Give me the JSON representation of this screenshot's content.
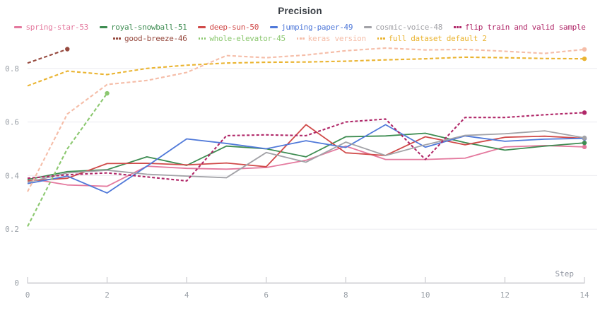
{
  "chart": {
    "title": "Precision",
    "x_axis_label": "Step",
    "x_tick_labels": [
      "0",
      "2",
      "4",
      "6",
      "8",
      "10",
      "12",
      "14"
    ],
    "y_tick_labels": [
      "0",
      "0.2",
      "0.4",
      "0.6",
      "0.8"
    ],
    "colors": {
      "grid": "#ececf0",
      "axis": "#d4d4d8",
      "tick_text": "#9ba1a8",
      "step_label_text": "#9095a0",
      "title_text": "#3a3f45",
      "background": "#ffffff"
    }
  },
  "chart_data": {
    "type": "line",
    "title": "Precision",
    "xlabel": "Step",
    "ylabel": "",
    "xlim": [
      0,
      14
    ],
    "ylim": [
      0,
      1.0
    ],
    "x_ticks": [
      0,
      2,
      4,
      6,
      8,
      10,
      12,
      14
    ],
    "y_ticks": [
      0,
      0.2,
      0.4,
      0.6,
      0.8
    ],
    "grid": "horizontal",
    "legend_position": "top",
    "legend_rows": [
      [
        0,
        1,
        2,
        3,
        4,
        5
      ],
      [
        6,
        7,
        8,
        9
      ]
    ],
    "x": [
      0,
      1,
      2,
      3,
      4,
      5,
      6,
      7,
      8,
      9,
      10,
      11,
      12,
      13,
      14
    ],
    "series": [
      {
        "name": "spring-star-53",
        "color": "#e4799e",
        "style": "solid",
        "values": [
          0.39,
          0.365,
          0.36,
          0.435,
          0.427,
          0.424,
          0.43,
          0.457,
          0.51,
          0.46,
          0.46,
          0.465,
          0.507,
          0.512,
          0.507
        ]
      },
      {
        "name": "royal-snowball-51",
        "color": "#3d8c51",
        "style": "solid",
        "values": [
          0.385,
          0.415,
          0.422,
          0.47,
          0.438,
          0.51,
          0.5,
          0.47,
          0.545,
          0.548,
          0.558,
          0.523,
          0.495,
          0.51,
          0.522
        ]
      },
      {
        "name": "deep-sun-50",
        "color": "#d04a49",
        "style": "solid",
        "values": [
          0.38,
          0.39,
          0.445,
          0.446,
          0.44,
          0.447,
          0.433,
          0.59,
          0.485,
          0.475,
          0.545,
          0.515,
          0.543,
          0.547,
          0.539
        ]
      },
      {
        "name": "jumping-paper-49",
        "color": "#5079d9",
        "style": "solid",
        "values": [
          0.37,
          0.398,
          0.335,
          0.435,
          0.537,
          0.52,
          0.5,
          0.53,
          0.505,
          0.59,
          0.506,
          0.548,
          0.528,
          0.536,
          0.539
        ]
      },
      {
        "name": "cosmic-voice-48",
        "color": "#a2a2a7",
        "style": "solid",
        "values": [
          0.375,
          0.41,
          0.42,
          0.405,
          0.398,
          0.392,
          0.486,
          0.45,
          0.525,
          0.475,
          0.515,
          0.55,
          0.556,
          0.567,
          0.541
        ]
      },
      {
        "name": "flip train and valid sample",
        "color": "#b02768",
        "style": "dashed",
        "values": [
          0.39,
          0.403,
          0.41,
          0.395,
          0.38,
          0.549,
          0.552,
          0.549,
          0.6,
          0.611,
          0.46,
          0.617,
          0.617,
          0.627,
          0.635
        ]
      },
      {
        "name": "good-breeze-46",
        "color": "#96493e",
        "style": "dashed",
        "values": [
          0.82,
          0.872
        ]
      },
      {
        "name": "whole-elevator-45",
        "color": "#8cc870",
        "style": "dashed",
        "values": [
          0.21,
          0.5,
          0.707
        ]
      },
      {
        "name": "keras version",
        "color": "#f5bda8",
        "style": "dashed",
        "values": [
          0.34,
          0.63,
          0.74,
          0.755,
          0.785,
          0.848,
          0.84,
          0.85,
          0.866,
          0.876,
          0.869,
          0.871,
          0.864,
          0.856,
          0.871
        ]
      },
      {
        "name": "full dataset default 2",
        "color": "#eab431",
        "style": "dashed",
        "values": [
          0.735,
          0.79,
          0.777,
          0.8,
          0.812,
          0.82,
          0.823,
          0.824,
          0.827,
          0.832,
          0.836,
          0.842,
          0.84,
          0.837,
          0.836
        ]
      }
    ]
  }
}
